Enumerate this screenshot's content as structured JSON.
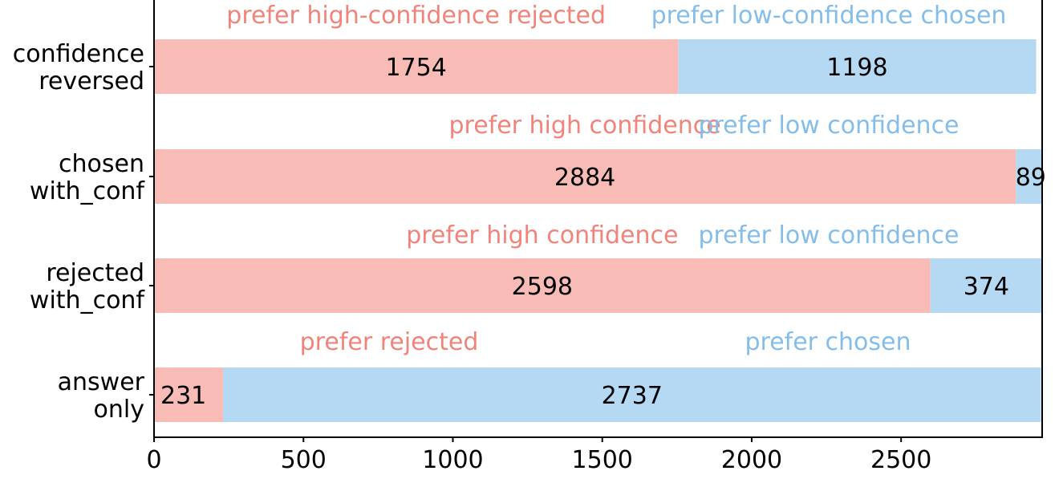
{
  "chart_data": {
    "type": "bar",
    "orientation": "horizontal",
    "stacked": true,
    "title": "",
    "xlabel": "",
    "ylabel": "",
    "xlim": [
      0,
      2972
    ],
    "xticks": [
      0,
      500,
      1000,
      1500,
      2000,
      2500
    ],
    "grid": false,
    "legend": "none",
    "colors": {
      "left": "#f8bbb5",
      "right": "#b5d9f3",
      "left_text": "#f2837b",
      "right_text": "#85bdea"
    },
    "categories": [
      {
        "lines": [
          "confidence",
          "reversed"
        ],
        "left": 1754,
        "right": 1198,
        "left_annotation": "prefer high-confidence rejected",
        "right_annotation": "prefer low-confidence chosen"
      },
      {
        "lines": [
          "chosen",
          "with_conf"
        ],
        "left": 2884,
        "right": 89,
        "left_annotation": "prefer high confidence",
        "right_annotation": "prefer low confidence"
      },
      {
        "lines": [
          "rejected",
          "with_conf"
        ],
        "left": 2598,
        "right": 374,
        "left_annotation": "prefer high confidence",
        "right_annotation": "prefer low confidence"
      },
      {
        "lines": [
          "answer",
          "only"
        ],
        "left": 231,
        "right": 2737,
        "left_annotation": "prefer rejected",
        "right_annotation": "prefer chosen"
      }
    ]
  }
}
